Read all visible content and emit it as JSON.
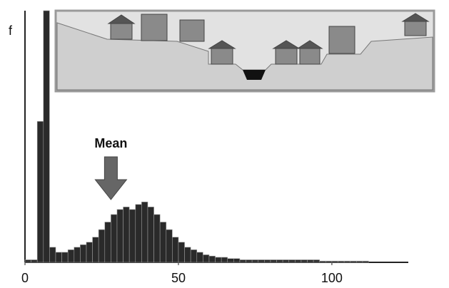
{
  "chart_data": {
    "type": "histogram",
    "y_label": "f",
    "annotation": "Mean",
    "annotation_x": 28,
    "bins": [
      0,
      2,
      4,
      6,
      8,
      10,
      12,
      14,
      16,
      18,
      20,
      22,
      24,
      26,
      28,
      30,
      32,
      34,
      36,
      38,
      40,
      42,
      44,
      46,
      48,
      50,
      52,
      54,
      56,
      58,
      60,
      62,
      64,
      66,
      68,
      70,
      72,
      74,
      76,
      78,
      80,
      82,
      84,
      86,
      88,
      90,
      92,
      94,
      96,
      98,
      100,
      102,
      104,
      106,
      108,
      110,
      112
    ],
    "values": [
      1,
      1,
      56,
      100,
      6,
      4,
      4,
      5,
      6,
      7,
      8,
      10,
      13,
      16,
      19,
      21,
      22,
      21,
      23,
      24,
      22,
      19,
      16,
      13,
      10,
      8,
      6,
      5,
      4,
      3,
      2.5,
      2,
      2,
      1.5,
      1.5,
      1,
      1,
      1,
      1,
      1,
      1,
      1,
      1,
      1,
      1,
      1,
      1,
      1,
      0.5,
      0.5,
      0.5,
      0.5,
      0.5,
      0.5,
      0.5,
      0.5
    ],
    "color": "#2a2a2a",
    "xlim": [
      0,
      127
    ],
    "xticks": [
      0,
      50,
      100
    ],
    "ylim": [
      0,
      100
    ]
  }
}
